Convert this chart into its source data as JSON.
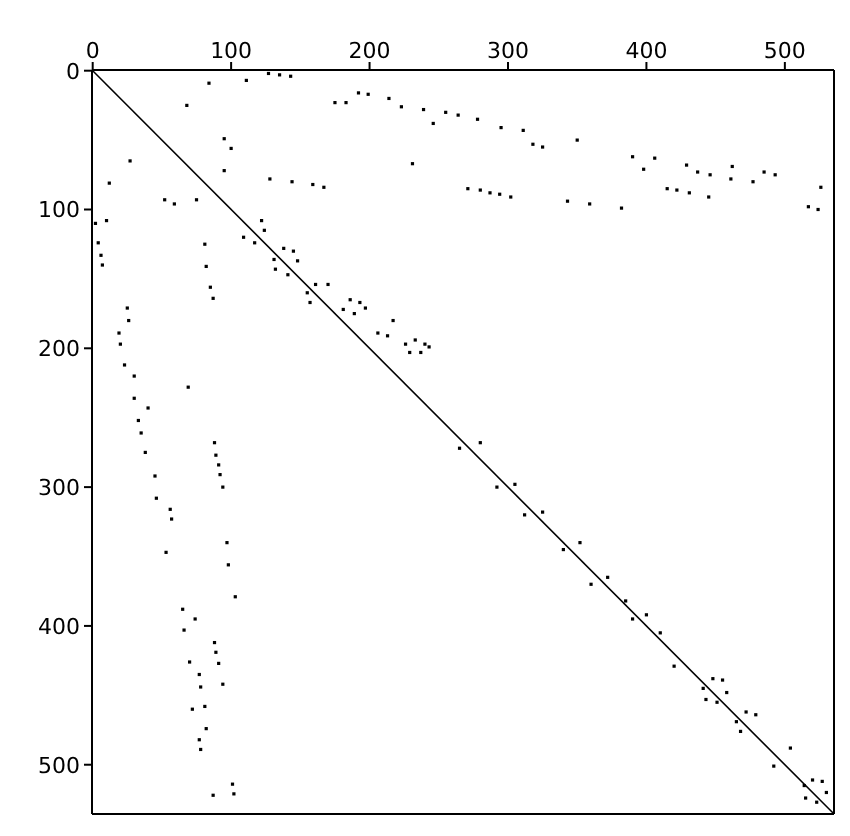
{
  "chart_data": {
    "type": "scatter",
    "marker": "square",
    "xlim": [
      -0.5,
      535.5
    ],
    "ylim": [
      535.5,
      -0.5
    ],
    "xticks": [
      0,
      100,
      200,
      300,
      400,
      500
    ],
    "yticks": [
      0,
      100,
      200,
      300,
      400,
      500
    ],
    "series": [
      {
        "type": "line",
        "marker": "none",
        "color": "#000000",
        "x": [
          0,
          535
        ],
        "values": [
          0,
          535
        ]
      },
      {
        "color": "#000000",
        "x": [
          84,
          111,
          127,
          135,
          143,
          68,
          175,
          183,
          192,
          199,
          214,
          223,
          239,
          246,
          255,
          264,
          278,
          295,
          311,
          318,
          325,
          350,
          390,
          398,
          406,
          429,
          437,
          446,
          462,
          461,
          477,
          485,
          493,
          271,
          280,
          287,
          294,
          302,
          343,
          359,
          382,
          415,
          422,
          431,
          445,
          526,
          517,
          524,
          95,
          100,
          27,
          95,
          231,
          12,
          128,
          144,
          159,
          167,
          52,
          59,
          75,
          2,
          10,
          4,
          6,
          7,
          81,
          82,
          85,
          87,
          25,
          26,
          19,
          20,
          23,
          30,
          69,
          30,
          40,
          33,
          35,
          38,
          45,
          46,
          56,
          57,
          53,
          65,
          66,
          74,
          70,
          77,
          78,
          72,
          81,
          82,
          77,
          78,
          88,
          89,
          91,
          92,
          94,
          97,
          98,
          103,
          88,
          89,
          91,
          94,
          87,
          101,
          102,
          109,
          122,
          124,
          117,
          131,
          138,
          145,
          132,
          148,
          141,
          155,
          161,
          170,
          157,
          186,
          193,
          181,
          197,
          189,
          217,
          206,
          213,
          226,
          233,
          240,
          229,
          237,
          243,
          265,
          280,
          292,
          305,
          312,
          325,
          340,
          352,
          360,
          372,
          385,
          390,
          400,
          410,
          420,
          441,
          448,
          443,
          451,
          458,
          455,
          465,
          472,
          479,
          468,
          504,
          492,
          514,
          520,
          515,
          527,
          523,
          530
        ],
        "values": [
          9,
          7,
          2,
          3,
          4,
          25,
          23,
          23,
          16,
          17,
          20,
          26,
          28,
          38,
          30,
          32,
          35,
          41,
          43,
          53,
          55,
          50,
          62,
          71,
          63,
          68,
          73,
          75,
          69,
          78,
          80,
          73,
          75,
          85,
          86,
          88,
          89,
          91,
          94,
          96,
          99,
          85,
          86,
          88,
          91,
          84,
          98,
          100,
          49,
          56,
          65,
          72,
          67,
          81,
          78,
          80,
          82,
          84,
          93,
          96,
          93,
          110,
          108,
          124,
          133,
          140,
          125,
          141,
          156,
          164,
          171,
          180,
          189,
          197,
          212,
          220,
          228,
          236,
          243,
          252,
          261,
          275,
          292,
          308,
          316,
          323,
          347,
          388,
          403,
          395,
          426,
          435,
          444,
          460,
          458,
          474,
          482,
          489,
          268,
          277,
          284,
          291,
          300,
          340,
          356,
          379,
          412,
          419,
          427,
          442,
          522,
          514,
          521,
          120,
          108,
          115,
          124,
          136,
          128,
          130,
          143,
          137,
          147,
          160,
          154,
          154,
          167,
          165,
          167,
          172,
          171,
          175,
          180,
          189,
          191,
          197,
          194,
          197,
          203,
          203,
          199,
          272,
          268,
          300,
          298,
          320,
          318,
          345,
          340,
          370,
          365,
          382,
          395,
          392,
          405,
          429,
          445,
          438,
          453,
          455,
          448,
          439,
          469,
          462,
          464,
          476,
          488,
          501,
          515,
          511,
          524,
          512,
          527,
          520
        ]
      }
    ]
  }
}
